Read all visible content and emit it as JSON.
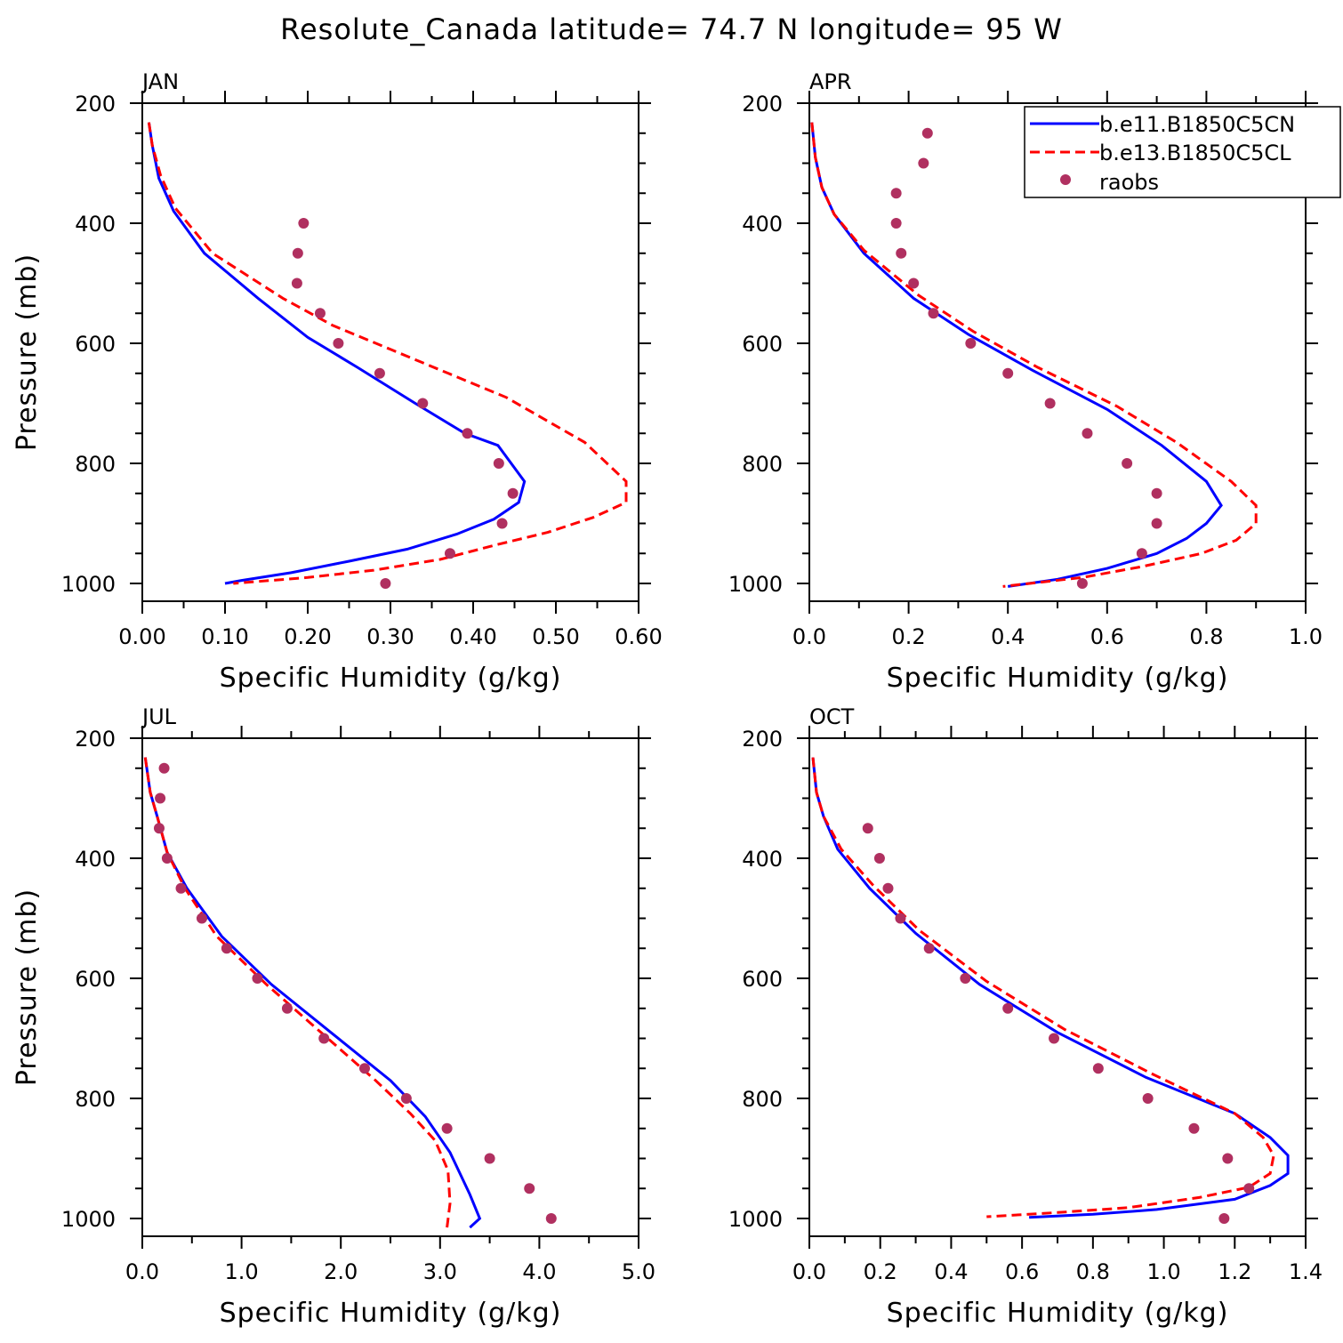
{
  "title": "Resolute_Canada  latitude= 74.7 N longitude= 95 W",
  "legend": {
    "entries": [
      {
        "label": "b.e11.B1850C5CN",
        "color": "#0000ff",
        "style": "solid"
      },
      {
        "label": "b.e13.B1850C5CL",
        "color": "#ff0000",
        "style": "dashed"
      },
      {
        "label": "raobs",
        "color": "#b03060",
        "style": "marker"
      }
    ]
  },
  "chart_data": [
    {
      "type": "line",
      "panel": "JAN",
      "xlabel": "Specific Humidity (g/kg)",
      "ylabel": "Pressure (mb)",
      "xlim": [
        0,
        0.6
      ],
      "ylim": [
        200,
        1000
      ],
      "xticks": [
        "0.00",
        "0.10",
        "0.20",
        "0.30",
        "0.40",
        "0.50",
        "0.60"
      ],
      "yticks": [
        "200",
        "400",
        "600",
        "800",
        "1000"
      ],
      "series": [
        {
          "name": "b.e11.B1850C5CN",
          "points": [
            [
              0.008,
              232
            ],
            [
              0.012,
              270
            ],
            [
              0.02,
              325
            ],
            [
              0.038,
              380
            ],
            [
              0.075,
              450
            ],
            [
              0.14,
              525
            ],
            [
              0.2,
              590
            ],
            [
              0.26,
              640
            ],
            [
              0.33,
              700
            ],
            [
              0.39,
              750
            ],
            [
              0.43,
              770
            ],
            [
              0.462,
              830
            ],
            [
              0.455,
              865
            ],
            [
              0.425,
              893
            ],
            [
              0.38,
              918
            ],
            [
              0.32,
              943
            ],
            [
              0.25,
              963
            ],
            [
              0.18,
              982
            ],
            [
              0.12,
              995
            ],
            [
              0.1,
              1000
            ]
          ]
        },
        {
          "name": "b.e13.B1850C5CL",
          "points": [
            [
              0.008,
              232
            ],
            [
              0.012,
              270
            ],
            [
              0.022,
              320
            ],
            [
              0.04,
              375
            ],
            [
              0.085,
              450
            ],
            [
              0.17,
              525
            ],
            [
              0.23,
              570
            ],
            [
              0.3,
              610
            ],
            [
              0.37,
              650
            ],
            [
              0.44,
              690
            ],
            [
              0.535,
              765
            ],
            [
              0.585,
              830
            ],
            [
              0.585,
              865
            ],
            [
              0.545,
              890
            ],
            [
              0.49,
              915
            ],
            [
              0.43,
              935
            ],
            [
              0.36,
              960
            ],
            [
              0.28,
              978
            ],
            [
              0.2,
              990
            ],
            [
              0.11,
              1000
            ]
          ]
        },
        {
          "name": "raobs",
          "points": [
            [
              0.195,
              400
            ],
            [
              0.188,
              450
            ],
            [
              0.187,
              500
            ],
            [
              0.215,
              550
            ],
            [
              0.237,
              600
            ],
            [
              0.287,
              650
            ],
            [
              0.339,
              700
            ],
            [
              0.393,
              750
            ],
            [
              0.431,
              800
            ],
            [
              0.448,
              850
            ],
            [
              0.435,
              900
            ],
            [
              0.372,
              950
            ],
            [
              0.294,
              1000
            ]
          ]
        }
      ]
    },
    {
      "type": "line",
      "panel": "APR",
      "xlabel": "Specific Humidity (g/kg)",
      "ylabel": "Pressure (mb)",
      "xlim": [
        0,
        1.0
      ],
      "ylim": [
        200,
        1000
      ],
      "xticks": [
        "0.0",
        "0.2",
        "0.4",
        "0.6",
        "0.8",
        "1.0"
      ],
      "yticks": [
        "200",
        "400",
        "600",
        "800",
        "1000"
      ],
      "series": [
        {
          "name": "b.e11.B1850C5CN",
          "points": [
            [
              0.005,
              232
            ],
            [
              0.012,
              290
            ],
            [
              0.025,
              340
            ],
            [
              0.05,
              385
            ],
            [
              0.11,
              450
            ],
            [
              0.21,
              525
            ],
            [
              0.32,
              585
            ],
            [
              0.45,
              645
            ],
            [
              0.6,
              710
            ],
            [
              0.71,
              770
            ],
            [
              0.8,
              830
            ],
            [
              0.83,
              870
            ],
            [
              0.8,
              900
            ],
            [
              0.76,
              925
            ],
            [
              0.7,
              950
            ],
            [
              0.6,
              975
            ],
            [
              0.5,
              993
            ],
            [
              0.4,
              1005
            ]
          ]
        },
        {
          "name": "b.e13.B1850C5CL",
          "points": [
            [
              0.005,
              232
            ],
            [
              0.012,
              290
            ],
            [
              0.025,
              340
            ],
            [
              0.05,
              385
            ],
            [
              0.11,
              445
            ],
            [
              0.22,
              520
            ],
            [
              0.33,
              580
            ],
            [
              0.46,
              640
            ],
            [
              0.62,
              705
            ],
            [
              0.74,
              765
            ],
            [
              0.85,
              830
            ],
            [
              0.9,
              870
            ],
            [
              0.9,
              900
            ],
            [
              0.86,
              928
            ],
            [
              0.79,
              950
            ],
            [
              0.67,
              972
            ],
            [
              0.55,
              990
            ],
            [
              0.39,
              1005
            ]
          ]
        },
        {
          "name": "raobs",
          "points": [
            [
              0.238,
              250
            ],
            [
              0.23,
              300
            ],
            [
              0.175,
              350
            ],
            [
              0.175,
              400
            ],
            [
              0.185,
              450
            ],
            [
              0.21,
              500
            ],
            [
              0.25,
              550
            ],
            [
              0.325,
              600
            ],
            [
              0.4,
              650
            ],
            [
              0.485,
              700
            ],
            [
              0.56,
              750
            ],
            [
              0.64,
              800
            ],
            [
              0.7,
              850
            ],
            [
              0.7,
              900
            ],
            [
              0.67,
              950
            ],
            [
              0.55,
              1000
            ]
          ]
        }
      ]
    },
    {
      "type": "line",
      "panel": "JUL",
      "xlabel": "Specific Humidity (g/kg)",
      "ylabel": "Pressure (mb)",
      "xlim": [
        0,
        5.0
      ],
      "ylim": [
        200,
        1000
      ],
      "xticks": [
        "0.0",
        "1.0",
        "2.0",
        "3.0",
        "4.0",
        "5.0"
      ],
      "yticks": [
        "200",
        "400",
        "600",
        "800",
        "1000"
      ],
      "series": [
        {
          "name": "b.e11.B1850C5CN",
          "points": [
            [
              0.03,
              232
            ],
            [
              0.08,
              290
            ],
            [
              0.15,
              330
            ],
            [
              0.25,
              390
            ],
            [
              0.45,
              450
            ],
            [
              0.8,
              530
            ],
            [
              1.3,
              610
            ],
            [
              1.9,
              690
            ],
            [
              2.5,
              770
            ],
            [
              2.85,
              830
            ],
            [
              3.1,
              890
            ],
            [
              3.3,
              960
            ],
            [
              3.4,
              1000
            ],
            [
              3.3,
              1015
            ]
          ]
        },
        {
          "name": "b.e13.B1850C5CL",
          "points": [
            [
              0.03,
              232
            ],
            [
              0.08,
              290
            ],
            [
              0.15,
              330
            ],
            [
              0.25,
              390
            ],
            [
              0.43,
              450
            ],
            [
              0.75,
              530
            ],
            [
              1.25,
              610
            ],
            [
              1.8,
              690
            ],
            [
              2.35,
              770
            ],
            [
              2.7,
              825
            ],
            [
              2.95,
              870
            ],
            [
              3.08,
              920
            ],
            [
              3.1,
              975
            ],
            [
              3.07,
              1015
            ]
          ]
        },
        {
          "name": "raobs",
          "points": [
            [
              0.22,
              250
            ],
            [
              0.18,
              300
            ],
            [
              0.17,
              350
            ],
            [
              0.25,
              400
            ],
            [
              0.39,
              450
            ],
            [
              0.6,
              500
            ],
            [
              0.85,
              550
            ],
            [
              1.16,
              600
            ],
            [
              1.46,
              650
            ],
            [
              1.83,
              700
            ],
            [
              2.24,
              750
            ],
            [
              2.66,
              800
            ],
            [
              3.07,
              850
            ],
            [
              3.5,
              900
            ],
            [
              3.9,
              950
            ],
            [
              4.12,
              1000
            ]
          ]
        }
      ]
    },
    {
      "type": "line",
      "panel": "OCT",
      "xlabel": "Specific Humidity (g/kg)",
      "ylabel": "Pressure (mb)",
      "xlim": [
        0,
        1.4
      ],
      "ylim": [
        200,
        1000
      ],
      "xticks": [
        "0.0",
        "0.2",
        "0.4",
        "0.6",
        "0.8",
        "1.0",
        "1.2",
        "1.4"
      ],
      "yticks": [
        "200",
        "400",
        "600",
        "800",
        "1000"
      ],
      "series": [
        {
          "name": "b.e11.B1850C5CN",
          "points": [
            [
              0.01,
              232
            ],
            [
              0.02,
              290
            ],
            [
              0.04,
              330
            ],
            [
              0.08,
              385
            ],
            [
              0.17,
              450
            ],
            [
              0.3,
              525
            ],
            [
              0.48,
              610
            ],
            [
              0.7,
              690
            ],
            [
              0.95,
              765
            ],
            [
              1.2,
              825
            ],
            [
              1.3,
              865
            ],
            [
              1.35,
              895
            ],
            [
              1.35,
              925
            ],
            [
              1.3,
              945
            ],
            [
              1.2,
              968
            ],
            [
              0.98,
              985
            ],
            [
              0.8,
              993
            ],
            [
              0.62,
              998
            ]
          ]
        },
        {
          "name": "b.e13.B1850C5CL",
          "points": [
            [
              0.01,
              232
            ],
            [
              0.02,
              290
            ],
            [
              0.04,
              330
            ],
            [
              0.09,
              385
            ],
            [
              0.18,
              445
            ],
            [
              0.31,
              520
            ],
            [
              0.5,
              605
            ],
            [
              0.72,
              685
            ],
            [
              0.97,
              760
            ],
            [
              1.2,
              825
            ],
            [
              1.28,
              865
            ],
            [
              1.31,
              895
            ],
            [
              1.3,
              925
            ],
            [
              1.24,
              948
            ],
            [
              1.1,
              965
            ],
            [
              0.9,
              982
            ],
            [
              0.7,
              990
            ],
            [
              0.5,
              997
            ]
          ]
        },
        {
          "name": "raobs",
          "points": [
            [
              0.165,
              350
            ],
            [
              0.198,
              400
            ],
            [
              0.222,
              450
            ],
            [
              0.257,
              500
            ],
            [
              0.338,
              550
            ],
            [
              0.44,
              600
            ],
            [
              0.56,
              650
            ],
            [
              0.69,
              700
            ],
            [
              0.815,
              750
            ],
            [
              0.955,
              800
            ],
            [
              1.085,
              850
            ],
            [
              1.18,
              900
            ],
            [
              1.24,
              950
            ],
            [
              1.17,
              1000
            ]
          ]
        }
      ]
    }
  ]
}
